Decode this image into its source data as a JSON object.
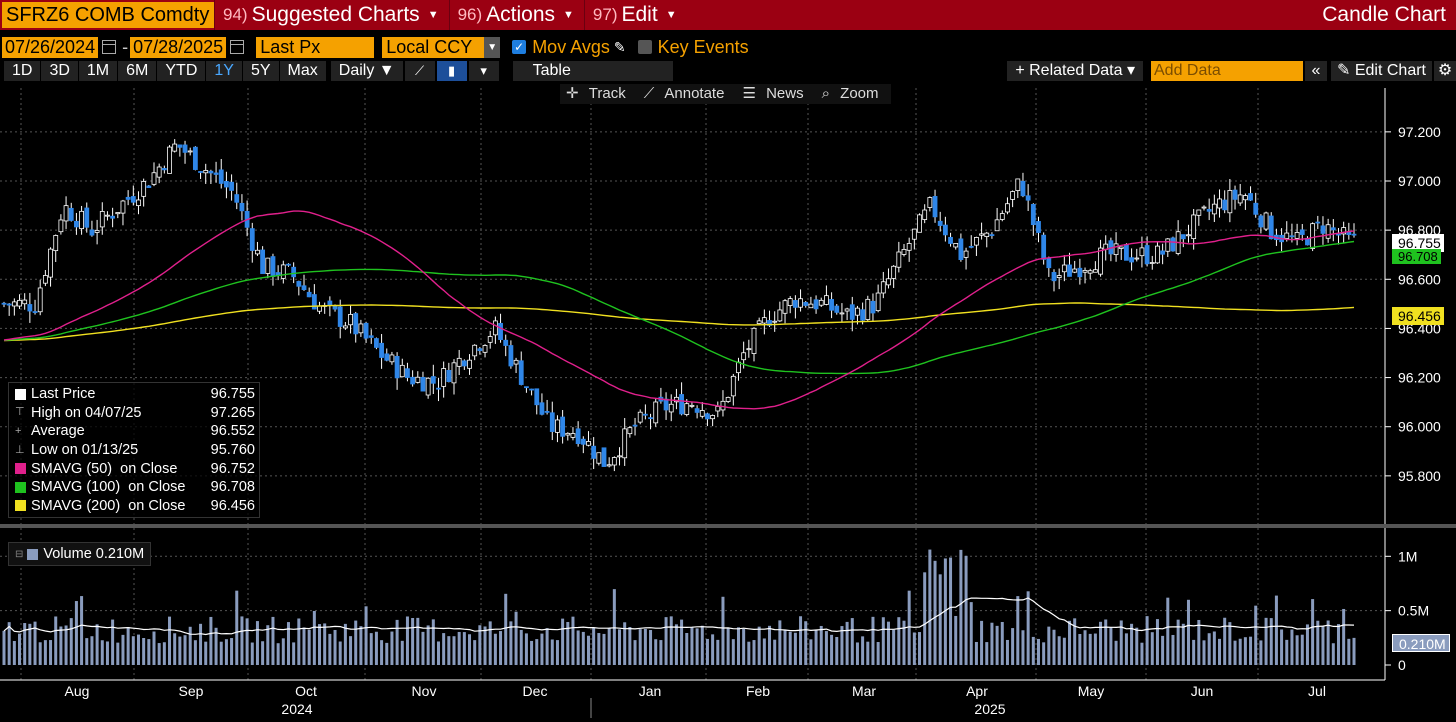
{
  "header": {
    "ticker": "SFRZ6 COMB Comdty",
    "menus": [
      {
        "num": "94)",
        "label": "Suggested Charts"
      },
      {
        "num": "96)",
        "label": "Actions"
      },
      {
        "num": "97)",
        "label": "Edit"
      }
    ],
    "title": "Candle Chart"
  },
  "controls": {
    "start_date": "07/26/2024",
    "end_date": "07/28/2025",
    "field": "Last Px",
    "currency": "Local CCY",
    "mov_avgs": "Mov Avgs",
    "key_events": "Key Events"
  },
  "toolbar": {
    "periods": [
      "1D",
      "3D",
      "1M",
      "6M",
      "YTD",
      "1Y",
      "5Y",
      "Max"
    ],
    "active_period": "1Y",
    "frequency": "Daily",
    "table": "Table",
    "related": "+ Related Data",
    "add_data_placeholder": "Add Data",
    "edit_chart": "Edit Chart"
  },
  "annotation_bar": [
    "Track",
    "Annotate",
    "News",
    "Zoom"
  ],
  "legend": {
    "rows": [
      {
        "label": "Last Price",
        "value": "96.755",
        "color": "#ffffff"
      },
      {
        "label": "High on 04/07/25",
        "value": "97.265",
        "color": ""
      },
      {
        "label": "Average",
        "value": "96.552",
        "color": ""
      },
      {
        "label": "Low on 01/13/25",
        "value": "95.760",
        "color": ""
      },
      {
        "label": "SMAVG (50)  on Close",
        "value": "96.752",
        "color": "#e0208c"
      },
      {
        "label": "SMAVG (100)  on Close",
        "value": "96.708",
        "color": "#1fc21f"
      },
      {
        "label": "SMAVG (200)  on Close",
        "value": "96.456",
        "color": "#f0e020"
      }
    ],
    "volume": "Volume  0.210M"
  },
  "price_tags": {
    "last": "96.755",
    "ma100": "96.708",
    "ma200": "96.456",
    "volume": "0.210M"
  },
  "chart_data": {
    "type": "candlestick",
    "y_ticks": [
      "97.200",
      "97.000",
      "96.800",
      "96.600",
      "96.400",
      "96.200",
      "96.000",
      "95.800"
    ],
    "ylim": [
      95.6,
      97.35
    ],
    "volume_ticks": [
      "1M",
      "0.5M",
      "0"
    ],
    "x_months": [
      "Aug",
      "Sep",
      "Oct",
      "Nov",
      "Dec",
      "Jan",
      "Feb",
      "Mar",
      "Apr",
      "May",
      "Jun",
      "Jul"
    ],
    "years": [
      "2024",
      "2025"
    ],
    "close_series": {
      "Aug": [
        96.5,
        96.9,
        96.8,
        96.9
      ],
      "Sep": [
        97.0,
        97.15,
        97.05,
        96.95
      ],
      "Oct": [
        96.65,
        96.62,
        96.48,
        96.42
      ],
      "Nov": [
        96.3,
        96.2,
        96.18,
        96.3
      ],
      "Dec": [
        96.4,
        96.2,
        96.0,
        95.98
      ],
      "Jan": [
        95.85,
        96.0,
        96.08,
        96.1
      ],
      "Feb": [
        96.05,
        96.3,
        96.45,
        96.52
      ],
      "Mar": [
        96.5,
        96.45,
        96.5,
        96.7
      ],
      "Apr": [
        96.9,
        96.7,
        96.8,
        97.0
      ],
      "May": [
        96.6,
        96.65,
        96.7,
        96.7
      ],
      "Jun": [
        96.7,
        96.8,
        96.9,
        96.95
      ],
      "Jul": [
        96.8,
        96.75,
        96.82,
        96.755
      ]
    }
  }
}
